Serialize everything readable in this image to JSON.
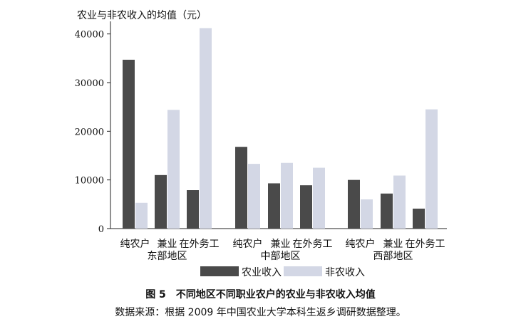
{
  "chart_data": {
    "type": "bar",
    "ylabel": "农业与非农收入的均值（元）",
    "ylim": [
      0,
      42000
    ],
    "yticks": [
      0,
      10000,
      20000,
      30000,
      40000
    ],
    "groups": [
      {
        "label": "东部地区",
        "categories": [
          "纯农户",
          "兼业",
          "在外务工"
        ]
      },
      {
        "label": "中部地区",
        "categories": [
          "纯农户",
          "兼业",
          "在外务工"
        ]
      },
      {
        "label": "西部地区",
        "categories": [
          "纯农户",
          "兼业",
          "在外务工"
        ]
      }
    ],
    "series": [
      {
        "name": "农业收入",
        "color": "#4a4a4a",
        "values": [
          34700,
          11000,
          7900,
          16800,
          9300,
          8900,
          10000,
          7200,
          4100
        ]
      },
      {
        "name": "非农收入",
        "color": "#d3d7e5",
        "values": [
          5300,
          24400,
          41200,
          13300,
          13500,
          12500,
          6000,
          10900,
          24500
        ]
      }
    ],
    "legend_position": "bottom"
  },
  "caption": {
    "title": "图 5　不同地区不同职业农户的农业与非农收入均值",
    "source": "数据来源：根据 2009 年中国农业大学本科生返乡调研数据整理。"
  }
}
